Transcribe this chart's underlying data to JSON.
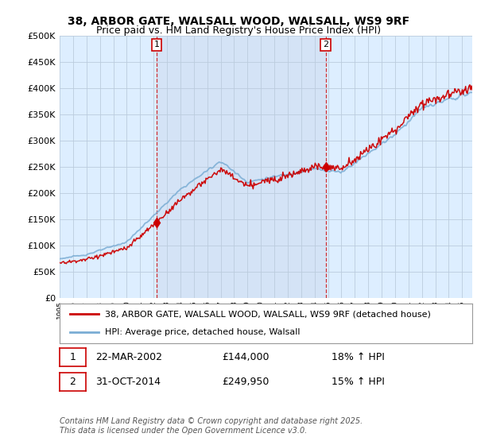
{
  "title": "38, ARBOR GATE, WALSALL WOOD, WALSALL, WS9 9RF",
  "subtitle": "Price paid vs. HM Land Registry's House Price Index (HPI)",
  "ylabel_ticks": [
    "£0",
    "£50K",
    "£100K",
    "£150K",
    "£200K",
    "£250K",
    "£300K",
    "£350K",
    "£400K",
    "£450K",
    "£500K"
  ],
  "ytick_values": [
    0,
    50000,
    100000,
    150000,
    200000,
    250000,
    300000,
    350000,
    400000,
    450000,
    500000
  ],
  "ylim": [
    0,
    500000
  ],
  "legend_line1": "38, ARBOR GATE, WALSALL WOOD, WALSALL, WS9 9RF (detached house)",
  "legend_line2": "HPI: Average price, detached house, Walsall",
  "sale1_label": "1",
  "sale1_date": "22-MAR-2002",
  "sale1_price": "£144,000",
  "sale1_hpi": "18% ↑ HPI",
  "sale2_label": "2",
  "sale2_date": "31-OCT-2014",
  "sale2_price": "£249,950",
  "sale2_hpi": "15% ↑ HPI",
  "copyright": "Contains HM Land Registry data © Crown copyright and database right 2025.\nThis data is licensed under the Open Government Licence v3.0.",
  "red_color": "#cc0000",
  "blue_color": "#7aadd4",
  "vline_color": "#cc0000",
  "bg_color": "#ddeeff",
  "bg_color_between": "#ccd9ee",
  "plot_bg": "#ffffff",
  "title_fontsize": 10,
  "subtitle_fontsize": 9,
  "sale1_x_year": 2002.22,
  "sale1_price_val": 144000,
  "sale2_x_year": 2014.83,
  "sale2_price_val": 249950,
  "xmin": 1995.0,
  "xmax": 2025.75
}
